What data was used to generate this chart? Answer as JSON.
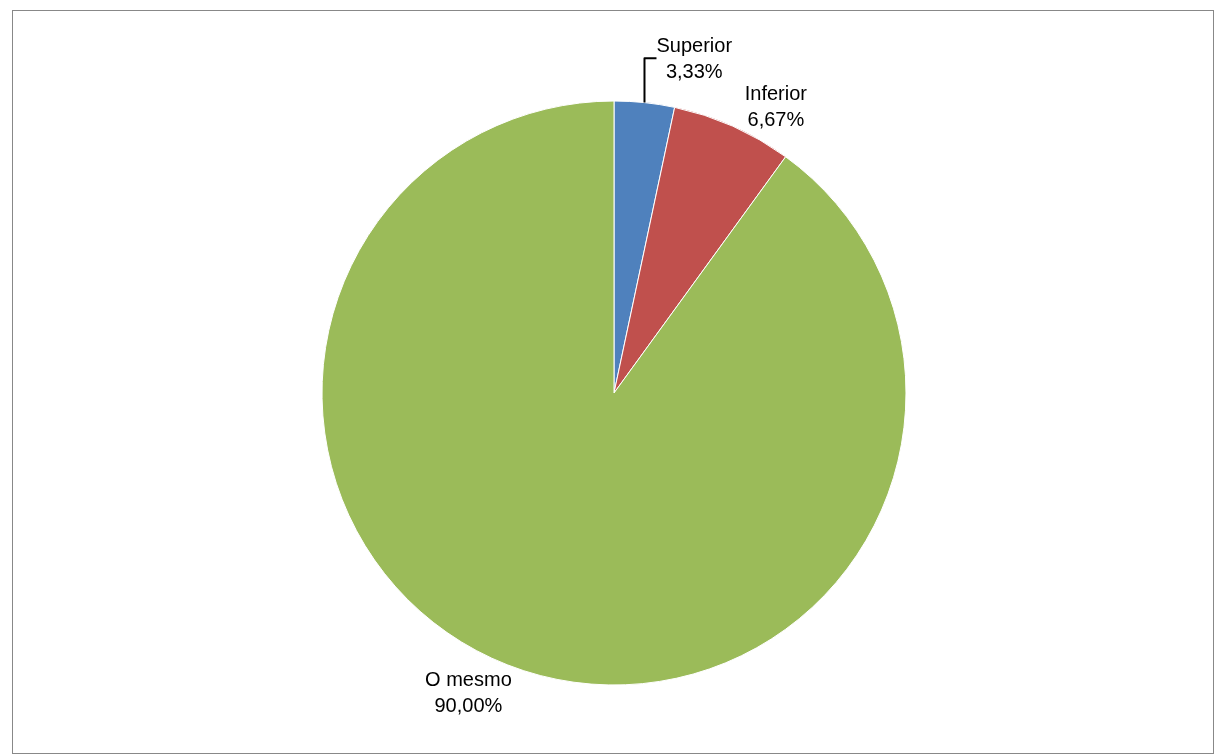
{
  "chart_data": {
    "type": "pie",
    "categories": [
      "Superior",
      "Inferior",
      "O mesmo"
    ],
    "values": [
      3.33,
      6.67,
      90
    ],
    "value_labels": [
      "3,33%",
      "6,67%",
      "90,00%"
    ],
    "colors": [
      "#4f81bd",
      "#c0504d",
      "#9bbb59"
    ],
    "legend": false
  }
}
